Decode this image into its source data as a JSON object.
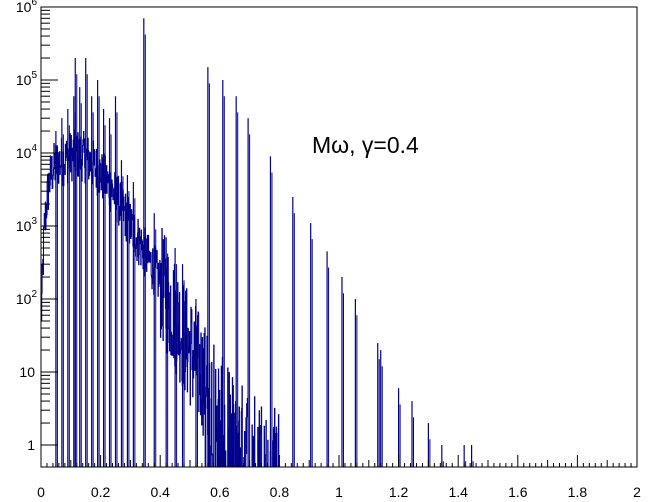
{
  "chart_data": {
    "type": "histogram",
    "annotation": "Mω, γ=0.4",
    "x_axis": {
      "range": [
        0,
        2
      ],
      "tick_labels": [
        "0",
        "0.2",
        "0.4",
        "0.6",
        "0.8",
        "1",
        "1.2",
        "1.4",
        "1.6",
        "1.8",
        "2"
      ]
    },
    "y_axis": {
      "scale": "log",
      "range": [
        0.5,
        1000000
      ],
      "tick_labels": [
        {
          "base": "1",
          "exp": ""
        },
        {
          "base": "10",
          "exp": ""
        },
        {
          "base": "10",
          "exp": "2"
        },
        {
          "base": "10",
          "exp": "3"
        },
        {
          "base": "10",
          "exp": "4"
        },
        {
          "base": "10",
          "exp": "5"
        },
        {
          "base": "10",
          "exp": "6"
        }
      ]
    },
    "grid": false,
    "legend": "none",
    "line_color": "#00008b",
    "envelope": {
      "x": [
        0.0,
        0.005,
        0.01,
        0.02,
        0.03,
        0.04,
        0.05,
        0.06,
        0.08,
        0.1,
        0.12,
        0.14,
        0.16,
        0.18,
        0.2,
        0.22,
        0.24,
        0.26,
        0.28,
        0.3,
        0.32,
        0.34,
        0.36,
        0.38,
        0.4,
        0.42,
        0.44,
        0.46,
        0.48,
        0.5,
        0.52,
        0.54,
        0.56,
        0.58,
        0.6,
        0.62,
        0.64,
        0.66,
        0.68,
        0.7,
        0.72,
        0.74,
        0.76,
        0.78,
        0.8
      ],
      "y": [
        50,
        200,
        800,
        2500,
        4500,
        6000,
        7000,
        7500,
        8000,
        9000,
        9500,
        9000,
        8000,
        6500,
        5000,
        4000,
        3000,
        2200,
        1500,
        1000,
        700,
        500,
        350,
        250,
        170,
        110,
        75,
        50,
        30,
        20,
        14,
        9,
        6,
        4,
        3,
        2,
        1.6,
        1.3,
        1.1,
        1,
        0.9,
        0.8,
        0.7,
        0.6,
        0.55
      ]
    },
    "spikes": [
      {
        "x": 0.05,
        "y": 20000
      },
      {
        "x": 0.07,
        "y": 30000
      },
      {
        "x": 0.09,
        "y": 40000
      },
      {
        "x": 0.11,
        "y": 60000
      },
      {
        "x": 0.115,
        "y": 200000
      },
      {
        "x": 0.13,
        "y": 80000
      },
      {
        "x": 0.15,
        "y": 200000
      },
      {
        "x": 0.17,
        "y": 60000
      },
      {
        "x": 0.19,
        "y": 100000
      },
      {
        "x": 0.21,
        "y": 40000
      },
      {
        "x": 0.23,
        "y": 30000
      },
      {
        "x": 0.25,
        "y": 60000
      },
      {
        "x": 0.27,
        "y": 8000
      },
      {
        "x": 0.29,
        "y": 5000
      },
      {
        "x": 0.31,
        "y": 4000
      },
      {
        "x": 0.345,
        "y": 700000
      },
      {
        "x": 0.38,
        "y": 1500
      },
      {
        "x": 0.42,
        "y": 700
      },
      {
        "x": 0.45,
        "y": 500
      },
      {
        "x": 0.475,
        "y": 300
      },
      {
        "x": 0.52,
        "y": 100
      },
      {
        "x": 0.56,
        "y": 150000
      },
      {
        "x": 0.61,
        "y": 100000
      },
      {
        "x": 0.655,
        "y": 60000
      },
      {
        "x": 0.695,
        "y": 30000
      },
      {
        "x": 0.77,
        "y": 9000
      },
      {
        "x": 0.845,
        "y": 2500
      },
      {
        "x": 0.905,
        "y": 1100
      },
      {
        "x": 0.96,
        "y": 450
      },
      {
        "x": 1.01,
        "y": 200
      },
      {
        "x": 1.055,
        "y": 100
      },
      {
        "x": 1.13,
        "y": 25
      },
      {
        "x": 1.14,
        "y": 20
      },
      {
        "x": 1.2,
        "y": 6
      },
      {
        "x": 1.245,
        "y": 4
      },
      {
        "x": 1.3,
        "y": 2
      },
      {
        "x": 1.345,
        "y": 1
      },
      {
        "x": 1.42,
        "y": 1
      },
      {
        "x": 1.445,
        "y": 1
      }
    ]
  }
}
